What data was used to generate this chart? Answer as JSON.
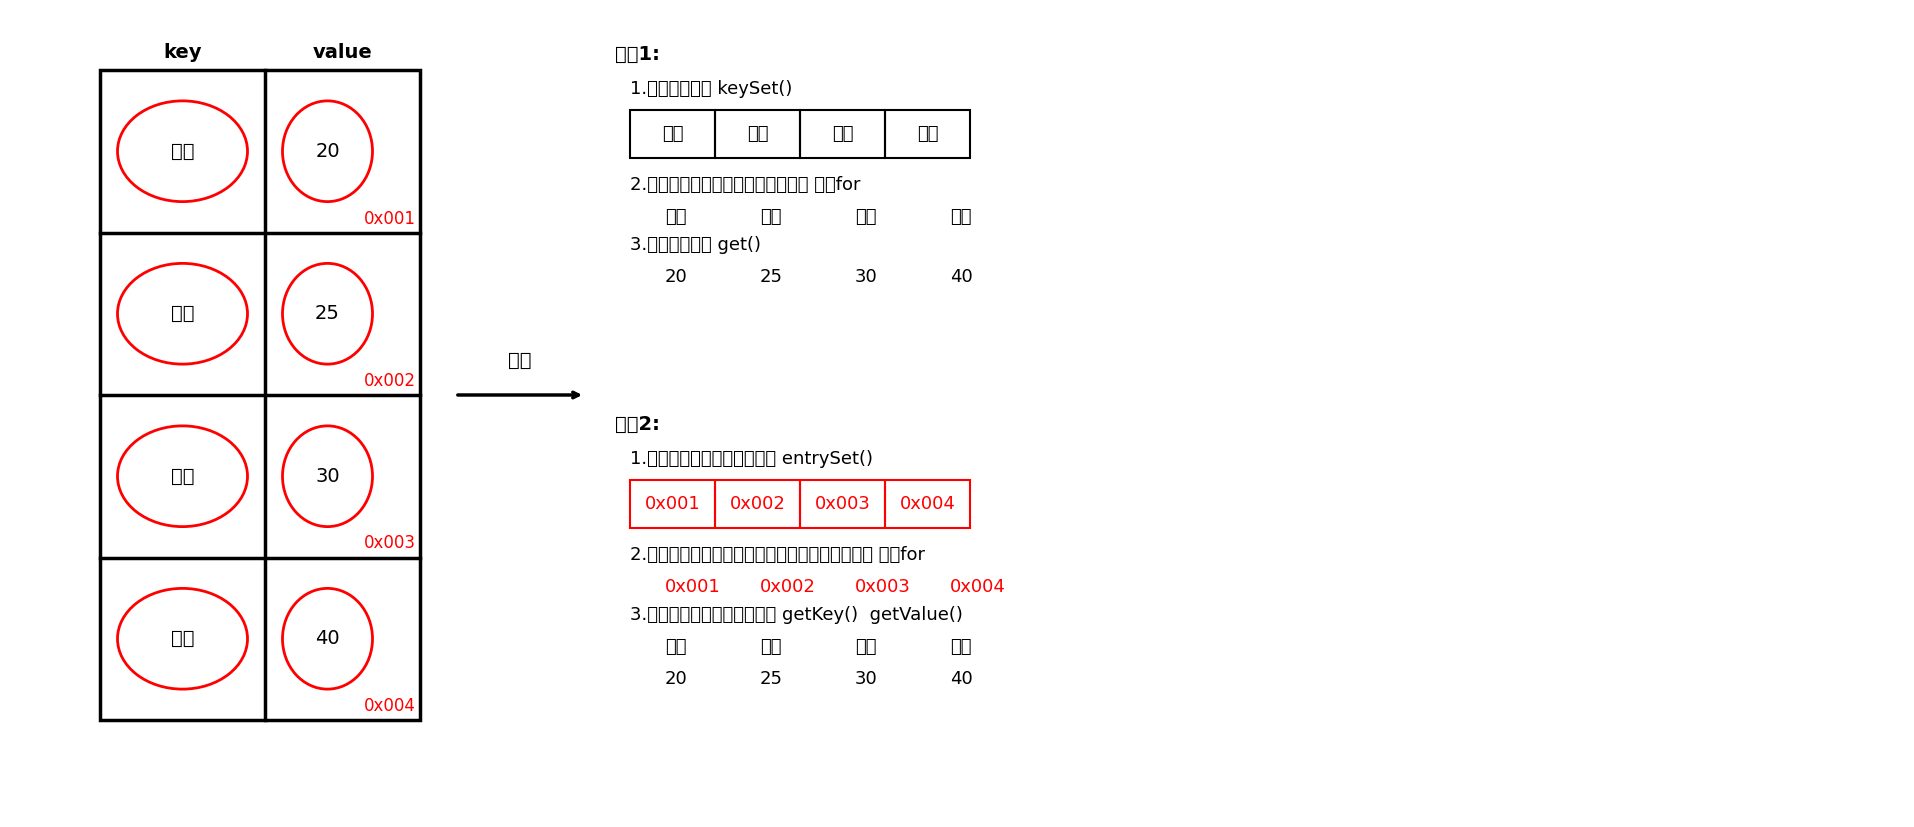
{
  "bg_color": "#ffffff",
  "keys": [
    "张三",
    "李四",
    "王五",
    "赵六"
  ],
  "values": [
    "20",
    "25",
    "30",
    "40"
  ],
  "addresses": [
    "0x001",
    "0x002",
    "0x003",
    "0x004"
  ],
  "header_key": "key",
  "header_value": "value",
  "arrow_label": "遍历",
  "method1_title": "方式1:",
  "method1_step1": "1.获取所有的键 keySet()",
  "method1_step2": "2.遍历键的集合，获取得到每一个键 增强for",
  "method1_step3": "3.根据键去找値 get()",
  "method1_keys_row": [
    "张三",
    "李四",
    "王五",
    "赵六"
  ],
  "method1_iter_row": [
    "张三",
    "李四",
    "王五",
    "赵六"
  ],
  "method1_val_row": [
    "20",
    "25",
    "30",
    "40"
  ],
  "method2_title": "方式2:",
  "method2_step1": "1.获取所有键値对对象的集合 entrySet()",
  "method2_step2": "2.遍历键値对对象的集合，得到每一个键値对对象 增强for",
  "method2_step3": "3.根据键値对对象获取键和値 getKey()  getValue()",
  "method2_addr_row": [
    "0x001",
    "0x002",
    "0x003",
    "0x004"
  ],
  "method2_iter_row": [
    "0x001",
    "0x002",
    "0x003",
    "0x004"
  ],
  "method2_keys_row": [
    "张三",
    "李四",
    "王五",
    "赵六"
  ],
  "method2_val_row": [
    "20",
    "25",
    "30",
    "40"
  ],
  "black": "#000000",
  "red": "#ff0000",
  "fs": 13,
  "fs_bold": 14
}
